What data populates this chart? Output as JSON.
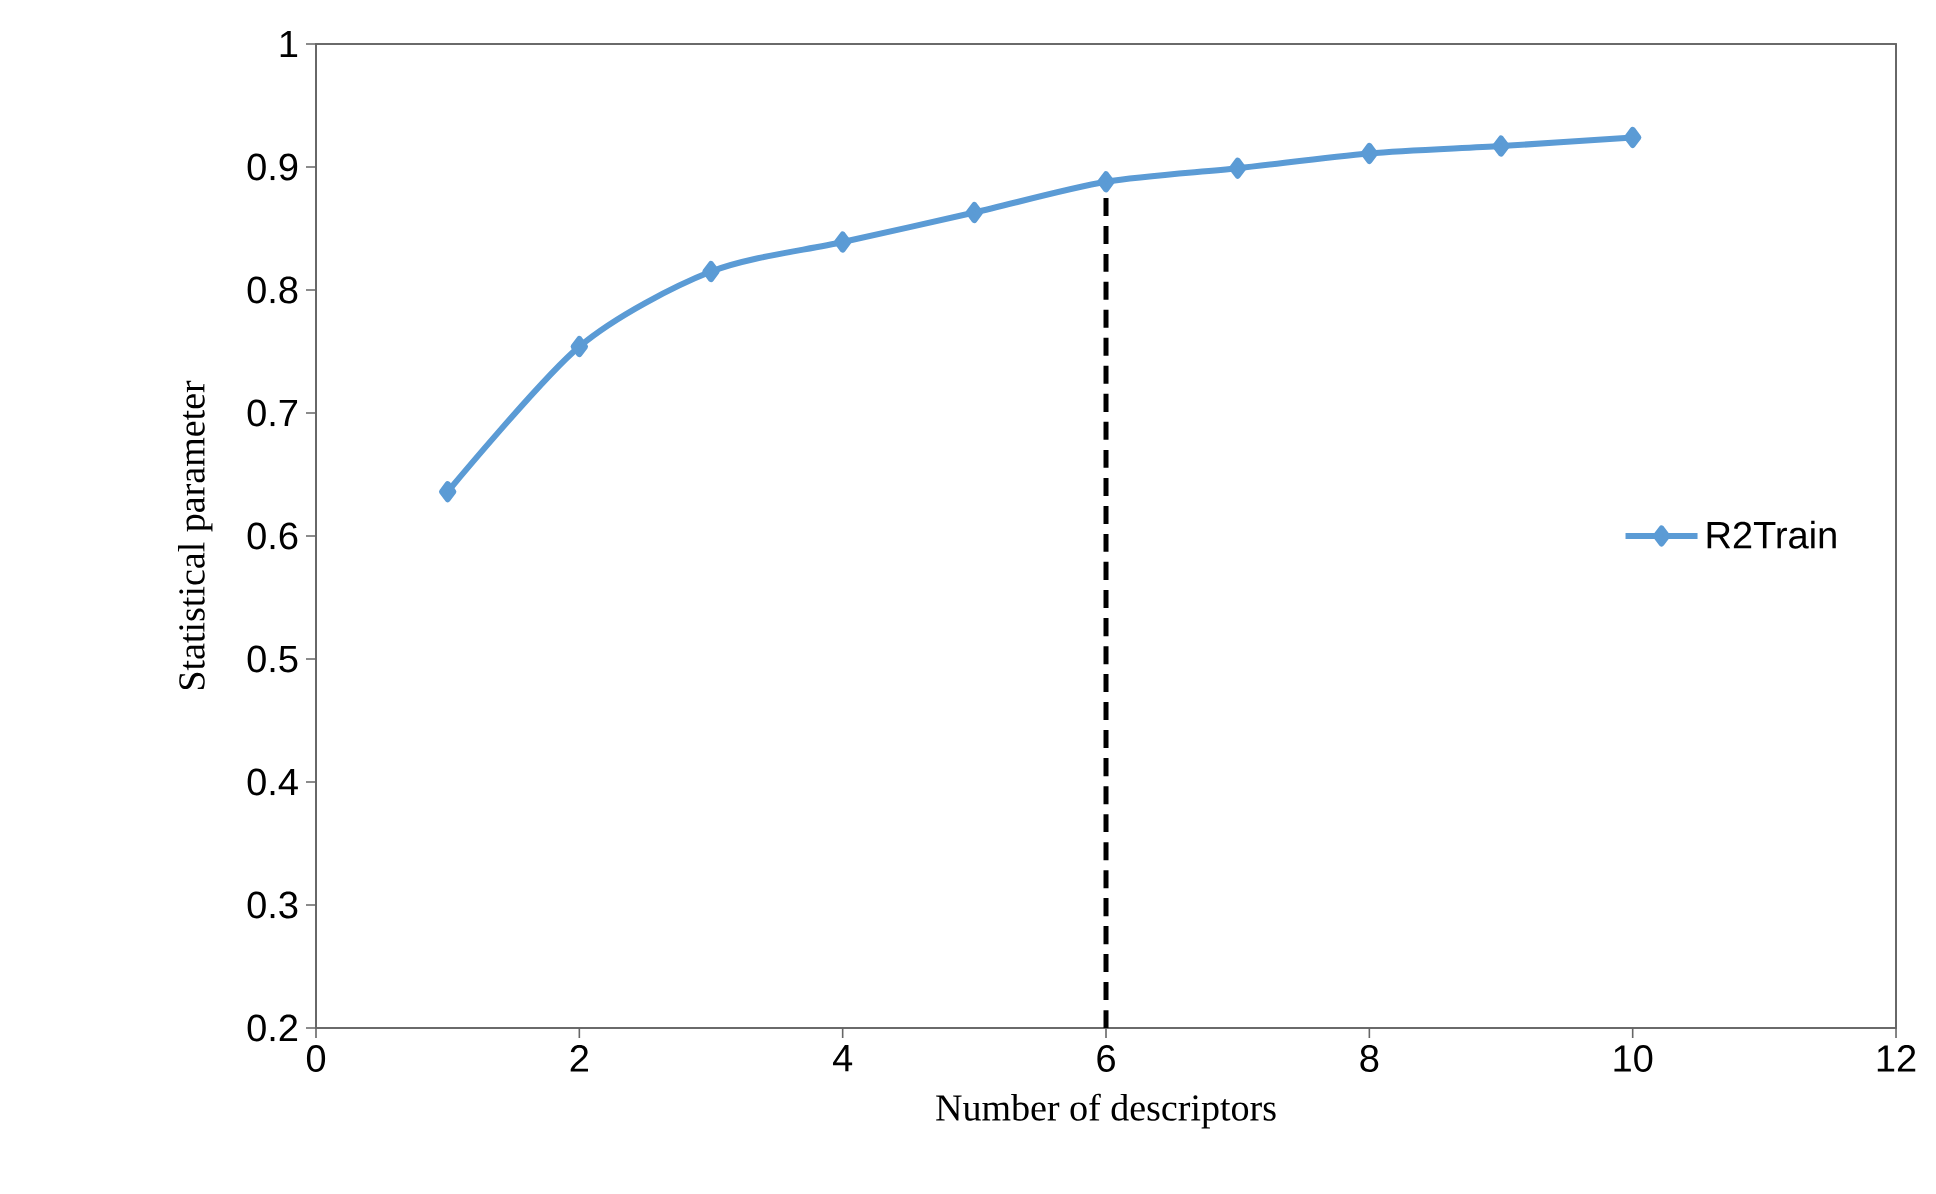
{
  "chart_data": {
    "type": "line",
    "xlabel": "Number of descriptors",
    "ylabel": "Statistical parameter",
    "xlim": [
      0,
      12
    ],
    "xticks": [
      0,
      2,
      4,
      6,
      8,
      10,
      12
    ],
    "ylim": [
      0.2,
      1
    ],
    "yticks": [
      0.2,
      0.3,
      0.4,
      0.5,
      0.6,
      0.7,
      0.8,
      0.9,
      1
    ],
    "grid": false,
    "legend": "right",
    "series": [
      {
        "name": "R2Train",
        "color": "#5b9bd5",
        "marker": "diamond",
        "line_style": "solid",
        "x": [
          1,
          2,
          3,
          4,
          5,
          6,
          7,
          8,
          9,
          10
        ],
        "values": [
          0.636,
          0.754,
          0.815,
          0.839,
          0.863,
          0.888,
          0.899,
          0.911,
          0.917,
          0.924
        ]
      },
      {
        "color": "#000000",
        "marker": "none",
        "line_style": "dashed",
        "x": [
          6,
          6
        ],
        "values": [
          0.2,
          0.888
        ]
      }
    ]
  }
}
